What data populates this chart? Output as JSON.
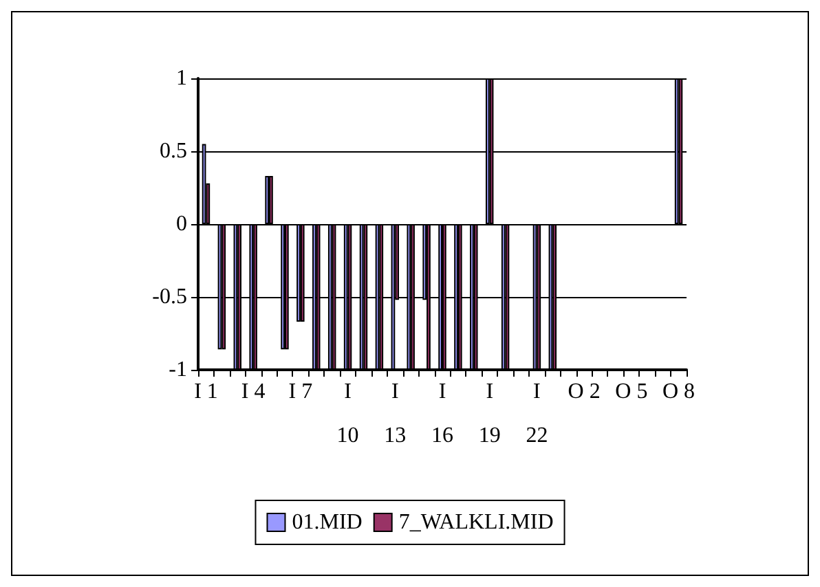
{
  "chart_data": {
    "type": "bar",
    "categories": [
      "I 1",
      null,
      null,
      "I 4",
      null,
      null,
      "I 7",
      null,
      null,
      "I 10",
      null,
      null,
      "I 13",
      null,
      null,
      "I 16",
      null,
      null,
      "I 19",
      null,
      null,
      "I 22",
      null,
      null,
      "O 2",
      null,
      null,
      "O 5",
      null,
      null,
      "O 8"
    ],
    "series": [
      {
        "name": "01.MID",
        "color": "#9999ff",
        "values": [
          0.55,
          -0.86,
          -1,
          -1,
          0.33,
          -0.86,
          -0.67,
          -1,
          -1,
          -1,
          -1,
          -1,
          -1,
          -1,
          -0.52,
          -1,
          -1,
          -1,
          1,
          -1,
          0,
          -1,
          -1,
          0,
          0,
          0,
          0,
          0,
          0,
          0,
          1
        ]
      },
      {
        "name": "7_WALKLI.MID",
        "color": "#993366",
        "values": [
          0.28,
          -0.86,
          -1,
          -1,
          0.33,
          -0.86,
          -0.67,
          -1,
          -1,
          -1,
          -1,
          -1,
          -0.52,
          -1,
          -1,
          -1,
          -1,
          -1,
          1,
          -1,
          0,
          -1,
          -1,
          0,
          0,
          0,
          0,
          0,
          0,
          0,
          1
        ]
      }
    ],
    "ylim": [
      -1,
      1
    ],
    "yticks": [
      -1,
      -0.5,
      0,
      0.5,
      1
    ],
    "grid": "y",
    "legend": "bottom"
  }
}
